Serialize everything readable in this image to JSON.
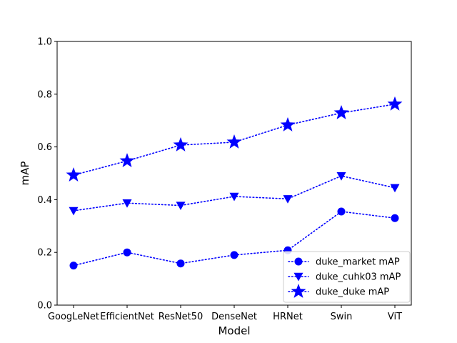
{
  "chart_data": {
    "type": "line",
    "title": "",
    "xlabel": "Model",
    "ylabel": "mAP",
    "categories": [
      "GoogLeNet",
      "EfficientNet",
      "ResNet50",
      "DenseNet",
      "HRNet",
      "Swin",
      "ViT"
    ],
    "ylim": [
      0.0,
      1.0
    ],
    "yticks": [
      "0.0",
      "0.2",
      "0.4",
      "0.6",
      "0.8",
      "1.0"
    ],
    "grid": false,
    "legend_position": "lower-right",
    "color": "#0000ff",
    "series": [
      {
        "name": "duke_market mAP",
        "marker": "circle",
        "values": [
          0.15,
          0.2,
          0.158,
          0.19,
          0.208,
          0.355,
          0.33
        ]
      },
      {
        "name": "duke_cuhk03 mAP",
        "marker": "triangle-down",
        "values": [
          0.358,
          0.387,
          0.378,
          0.412,
          0.403,
          0.49,
          0.445
        ]
      },
      {
        "name": "duke_duke mAP",
        "marker": "star",
        "values": [
          0.493,
          0.547,
          0.607,
          0.618,
          0.683,
          0.729,
          0.762
        ]
      }
    ]
  }
}
